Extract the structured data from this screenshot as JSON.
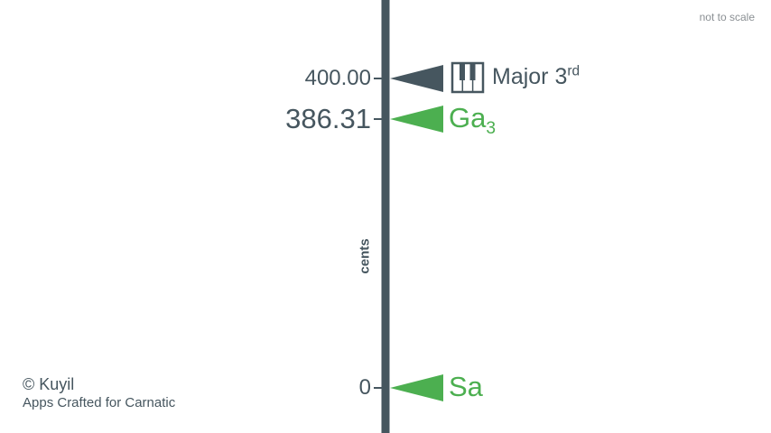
{
  "header": {
    "scale_note": "not to scale"
  },
  "credit": {
    "brand": "© Kuyil",
    "tagline": "Apps Crafted for Carnatic"
  },
  "axis": {
    "title": "cents"
  },
  "colors": {
    "axis": "#46565f",
    "equal_temperament": "#46565f",
    "swara": "#4caf50"
  },
  "markers": [
    {
      "id": "major-third",
      "cents": 400.0,
      "tick_label": "400.00",
      "name": "Major 3",
      "superscript": "rd",
      "subscript": "",
      "icon": "piano-icon",
      "color": "#46565f"
    },
    {
      "id": "ga3",
      "cents": 386.31,
      "tick_label": "386.31",
      "name": "Ga",
      "superscript": "",
      "subscript": "3",
      "icon": "",
      "color": "#4caf50"
    },
    {
      "id": "sa",
      "cents": 0,
      "tick_label": "0",
      "name": "Sa",
      "superscript": "",
      "subscript": "",
      "icon": "",
      "color": "#4caf50"
    }
  ]
}
